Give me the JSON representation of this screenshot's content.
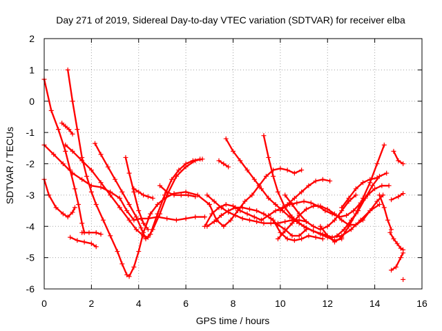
{
  "chart_data": {
    "type": "scatter",
    "title": "Day 271 of 2019, Sidereal Day-to-day VTEC variation (SDTVAR) for receiver elba",
    "xlabel": "GPS time / hours",
    "ylabel": "SDTVAR / TECUs",
    "xlim": [
      0,
      16
    ],
    "ylim": [
      -6,
      2
    ],
    "xticks": [
      0,
      2,
      4,
      6,
      8,
      10,
      12,
      14,
      16
    ],
    "yticks": [
      -6,
      -5,
      -4,
      -3,
      -2,
      -1,
      0,
      1,
      2
    ],
    "grid": true,
    "marker": "+",
    "color": "#ff0000",
    "series": [
      {
        "x": [
          0.0,
          0.3,
          0.6,
          0.9,
          1.1,
          1.3,
          1.45,
          1.6,
          1.7
        ],
        "y": [
          0.7,
          -0.3,
          -0.9,
          -1.6,
          -2.2,
          -2.8,
          -3.3,
          -3.9,
          -4.2
        ]
      },
      {
        "x": [
          0.0,
          0.4,
          0.8,
          1.2,
          1.6,
          2.0,
          2.4,
          2.8,
          3.2,
          3.5,
          3.8,
          4.1,
          4.4,
          4.8,
          5.2,
          5.6,
          6.0,
          6.4,
          6.8
        ],
        "y": [
          -1.4,
          -1.7,
          -2.0,
          -2.3,
          -2.5,
          -2.7,
          -2.75,
          -2.9,
          -3.1,
          -3.5,
          -3.8,
          -3.75,
          -3.75,
          -3.7,
          -3.75,
          -3.8,
          -3.75,
          -3.7,
          -3.7
        ]
      },
      {
        "x": [
          0.0,
          0.2,
          0.5,
          0.8,
          1.0,
          1.2,
          1.3
        ],
        "y": [
          -2.5,
          -3.0,
          -3.4,
          -3.6,
          -3.7,
          -3.55,
          -3.4
        ]
      },
      {
        "x": [
          0.75,
          0.9,
          1.05,
          1.2
        ],
        "y": [
          -0.7,
          -0.8,
          -0.9,
          -1.05
        ]
      },
      {
        "x": [
          1.0,
          1.2,
          1.4,
          1.6,
          1.8,
          2.0,
          2.2,
          2.5,
          2.8,
          3.1,
          3.3,
          3.5,
          3.6,
          3.8,
          4.0,
          4.2,
          4.5,
          4.8,
          5.1,
          5.5,
          6.0,
          6.5,
          7.0
        ],
        "y": [
          1.0,
          0.0,
          -0.9,
          -1.8,
          -2.4,
          -2.9,
          -3.3,
          -3.8,
          -4.3,
          -4.8,
          -5.2,
          -5.55,
          -5.6,
          -5.3,
          -4.8,
          -4.2,
          -3.6,
          -3.3,
          -3.1,
          -2.95,
          -2.9,
          -3.0,
          -3.3
        ]
      },
      {
        "x": [
          1.6,
          1.9,
          2.2,
          2.4
        ],
        "y": [
          -4.2,
          -4.2,
          -4.2,
          -4.25
        ]
      },
      {
        "x": [
          1.1,
          1.4,
          1.7,
          2.0,
          2.2
        ],
        "y": [
          -4.35,
          -4.45,
          -4.5,
          -4.55,
          -4.65
        ]
      },
      {
        "x": [
          0.9,
          1.2,
          1.6,
          2.0,
          2.4,
          2.8,
          3.2,
          3.6,
          3.9,
          4.2,
          4.4,
          4.6,
          4.9,
          5.2,
          5.6,
          6.0,
          6.4,
          6.7
        ],
        "y": [
          -1.4,
          -1.6,
          -1.9,
          -2.2,
          -2.6,
          -3.0,
          -3.4,
          -3.8,
          -4.1,
          -4.3,
          -4.35,
          -4.1,
          -3.6,
          -3.0,
          -2.4,
          -2.1,
          -1.9,
          -1.85
        ]
      },
      {
        "x": [
          2.15,
          2.4,
          2.7,
          3.0,
          3.3,
          3.6,
          3.9,
          4.1,
          4.3,
          4.5,
          4.8,
          5.1,
          5.4,
          5.7,
          6.0,
          6.3,
          6.6
        ],
        "y": [
          -1.35,
          -1.7,
          -2.1,
          -2.5,
          -2.9,
          -3.3,
          -3.7,
          -4.05,
          -4.4,
          -4.25,
          -3.6,
          -3.0,
          -2.5,
          -2.2,
          -2.0,
          -1.9,
          -1.85
        ]
      },
      {
        "x": [
          3.45,
          3.6,
          3.8,
          4.0,
          4.2,
          4.4
        ],
        "y": [
          -1.8,
          -2.3,
          -2.9,
          -3.5,
          -3.9,
          -4.1
        ]
      },
      {
        "x": [
          3.8,
          4.0,
          4.2,
          4.4,
          4.6
        ],
        "y": [
          -2.8,
          -2.9,
          -3.0,
          -3.05,
          -3.1
        ]
      },
      {
        "x": [
          4.9,
          5.2,
          5.5,
          5.8,
          6.1,
          6.4
        ],
        "y": [
          -2.7,
          -2.9,
          -3.0,
          -3.0,
          -3.0,
          -3.05
        ]
      },
      {
        "x": [
          7.0,
          7.3,
          7.6,
          7.9,
          8.2,
          8.5,
          8.8,
          9.1,
          9.4,
          9.7,
          10.0,
          10.3,
          10.6,
          10.9
        ],
        "y": [
          -3.3,
          -3.8,
          -4.0,
          -3.8,
          -3.5,
          -3.2,
          -3.0,
          -2.7,
          -2.4,
          -2.2,
          -2.15,
          -2.2,
          -2.3,
          -2.2
        ]
      },
      {
        "x": [
          6.9,
          7.2,
          7.5,
          7.8,
          8.1,
          8.4,
          8.7,
          9.0,
          9.3,
          9.6,
          9.9,
          10.2,
          10.5,
          10.8,
          11.1
        ],
        "y": [
          -3.0,
          -3.2,
          -3.4,
          -3.55,
          -3.65,
          -3.75,
          -3.8,
          -3.85,
          -3.9,
          -3.9,
          -3.9,
          -3.85,
          -3.8,
          -3.8,
          -3.85
        ]
      },
      {
        "x": [
          7.4,
          7.6,
          7.8
        ],
        "y": [
          -1.9,
          -2.0,
          -2.1
        ]
      },
      {
        "x": [
          6.9,
          7.2,
          7.5,
          7.8,
          8.1,
          8.4,
          8.7,
          9.0,
          9.3,
          9.6,
          9.9,
          10.2,
          10.5,
          10.8,
          11.1
        ],
        "y": [
          -4.0,
          -3.85,
          -3.65,
          -3.5,
          -3.4,
          -3.4,
          -3.45,
          -3.5,
          -3.6,
          -3.75,
          -3.95,
          -4.1,
          -4.3,
          -4.3,
          -4.1
        ]
      },
      {
        "x": [
          6.8,
          7.1,
          7.4,
          7.7,
          8.0,
          8.3,
          8.6,
          8.9,
          9.2
        ],
        "y": [
          -4.0,
          -3.6,
          -3.4,
          -3.3,
          -3.35,
          -3.5,
          -3.6,
          -3.7,
          -3.8
        ]
      },
      {
        "x": [
          7.7,
          8.0,
          8.3,
          8.6,
          8.9,
          9.2,
          9.5,
          9.8,
          10.1,
          10.4,
          10.7,
          11.0,
          11.4,
          11.8,
          12.2,
          12.6,
          13.0,
          13.4,
          13.8,
          14.2
        ],
        "y": [
          -1.2,
          -1.6,
          -1.9,
          -2.2,
          -2.5,
          -2.8,
          -3.1,
          -3.3,
          -3.5,
          -3.7,
          -3.85,
          -4.0,
          -4.15,
          -4.25,
          -4.35,
          -4.3,
          -4.1,
          -3.8,
          -3.5,
          -3.3
        ]
      },
      {
        "x": [
          9.3,
          9.5,
          9.7,
          9.9,
          10.2,
          10.5,
          10.8,
          11.1,
          11.4,
          11.7,
          12.0,
          12.3,
          12.6
        ],
        "y": [
          -1.1,
          -1.8,
          -2.4,
          -2.9,
          -3.4,
          -3.7,
          -3.9,
          -4.05,
          -4.15,
          -4.25,
          -4.35,
          -4.45,
          -4.4
        ]
      },
      {
        "x": [
          9.2,
          9.5,
          9.8,
          10.1,
          10.4,
          10.7,
          11.0,
          11.3,
          11.6,
          11.9,
          12.2,
          12.5,
          12.8,
          13.1,
          13.4,
          13.7,
          14.0,
          14.3,
          14.6
        ],
        "y": [
          -3.8,
          -3.65,
          -3.5,
          -3.4,
          -3.3,
          -3.25,
          -3.2,
          -3.25,
          -3.35,
          -3.5,
          -3.6,
          -3.7,
          -3.65,
          -3.5,
          -3.25,
          -3.0,
          -2.8,
          -2.7,
          -2.7
        ]
      },
      {
        "x": [
          9.7,
          10.0,
          10.3,
          10.6,
          10.9,
          11.2,
          11.5,
          11.8
        ],
        "y": [
          -3.8,
          -4.2,
          -4.4,
          -4.45,
          -4.4,
          -4.3,
          -4.35,
          -4.4
        ]
      },
      {
        "x": [
          10.0,
          10.3,
          10.6,
          10.9,
          11.2,
          11.5,
          11.8,
          12.1
        ],
        "y": [
          -3.5,
          -3.3,
          -3.1,
          -2.9,
          -2.7,
          -2.55,
          -2.5,
          -2.55
        ]
      },
      {
        "x": [
          9.9,
          10.2,
          10.5,
          10.8,
          11.1,
          11.4,
          11.7,
          12.0,
          12.3,
          12.6,
          12.9,
          13.2,
          13.5,
          13.8,
          14.1,
          14.35
        ],
        "y": [
          -4.4,
          -4.15,
          -3.9,
          -3.65,
          -3.45,
          -3.35,
          -3.35,
          -3.45,
          -3.6,
          -3.8,
          -3.95,
          -3.95,
          -3.8,
          -3.5,
          -3.2,
          -3.0
        ]
      },
      {
        "x": [
          10.2,
          10.5,
          10.8,
          11.1,
          11.4,
          11.7,
          12.0,
          12.3,
          12.6,
          12.9,
          13.2
        ],
        "y": [
          -3.0,
          -3.3,
          -3.6,
          -3.85,
          -4.0,
          -4.1,
          -4.0,
          -3.8,
          -3.5,
          -3.2,
          -3.0
        ]
      },
      {
        "x": [
          11.7,
          12.0,
          12.3,
          12.6,
          12.9,
          13.2,
          13.5,
          13.8,
          14.1,
          14.4
        ],
        "y": [
          -4.0,
          -4.3,
          -4.5,
          -4.35,
          -4.0,
          -3.6,
          -3.1,
          -2.6,
          -2.0,
          -1.4
        ]
      },
      {
        "x": [
          12.4,
          12.7,
          13.0,
          13.3,
          13.6,
          13.9,
          14.2,
          14.5
        ],
        "y": [
          -4.3,
          -4.1,
          -3.8,
          -3.5,
          -3.1,
          -2.7,
          -2.4,
          -2.3
        ]
      },
      {
        "x": [
          12.6,
          12.9,
          13.2,
          13.5,
          13.8,
          14.1
        ],
        "y": [
          -3.4,
          -3.1,
          -2.8,
          -2.6,
          -2.5,
          -2.45
        ]
      },
      {
        "x": [
          14.2,
          14.4,
          14.55,
          14.7
        ],
        "y": [
          -3.0,
          -3.4,
          -3.8,
          -4.1
        ]
      },
      {
        "x": [
          14.8,
          15.0,
          15.2
        ],
        "y": [
          -1.6,
          -1.9,
          -2.0
        ]
      },
      {
        "x": [
          14.7,
          15.0,
          15.2
        ],
        "y": [
          -3.15,
          -3.05,
          -2.95
        ]
      },
      {
        "x": [
          14.65,
          14.8,
          14.95,
          15.1,
          15.2
        ],
        "y": [
          -4.2,
          -4.4,
          -4.55,
          -4.7,
          -4.75
        ]
      },
      {
        "x": [
          14.7,
          14.9,
          15.1,
          15.2
        ],
        "y": [
          -5.4,
          -5.3,
          -5.0,
          -4.85
        ]
      },
      {
        "x": [
          15.2
        ],
        "y": [
          -5.7
        ]
      }
    ]
  }
}
